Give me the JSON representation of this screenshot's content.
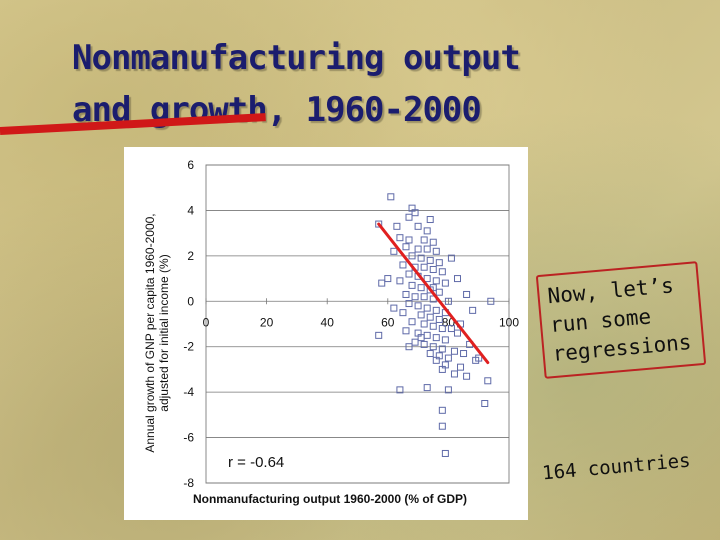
{
  "slide": {
    "title_line1": "Nonmanufacturing output",
    "title_line2": "and growth, 1960-2000",
    "callout_line1": "Now, let’s",
    "callout_line2": "run some",
    "callout_line3": "regressions",
    "note": "164 countries"
  },
  "colors": {
    "title": "#1b1d6e",
    "accent_red": "#d01818",
    "marker": "#5f6aa8",
    "fit_line": "#e02020"
  },
  "chart_data": {
    "type": "scatter",
    "title": "",
    "xlabel": "Nonmanufacturing output 1960-2000 (% of GDP)",
    "ylabel_line1": "Annual growth of GNP per capita 1960-2000,",
    "ylabel_line2": "adjusted for initial income (%)",
    "xlim": [
      0,
      100
    ],
    "ylim": [
      -8,
      6
    ],
    "x_ticks": [
      0,
      20,
      40,
      60,
      80,
      100
    ],
    "y_ticks": [
      -8,
      -6,
      -4,
      -2,
      0,
      2,
      4,
      6
    ],
    "x_tick_labels": [
      "0",
      "20",
      "40",
      "60",
      "80",
      "100"
    ],
    "y_tick_labels": [
      "-8",
      "-6",
      "-4",
      "-2",
      "0",
      "2",
      "4",
      "6"
    ],
    "grid": "horizontal",
    "annotation": "r = -0.64",
    "fit_line": {
      "x": [
        57,
        93
      ],
      "y": [
        3.4,
        -2.7
      ]
    },
    "points": [
      [
        61,
        4.6
      ],
      [
        68,
        4.1
      ],
      [
        69,
        3.9
      ],
      [
        67,
        3.7
      ],
      [
        57,
        3.4
      ],
      [
        63,
        3.3
      ],
      [
        70,
        3.3
      ],
      [
        73,
        3.1
      ],
      [
        64,
        2.8
      ],
      [
        67,
        2.7
      ],
      [
        72,
        2.7
      ],
      [
        75,
        2.6
      ],
      [
        66,
        2.4
      ],
      [
        70,
        2.3
      ],
      [
        73,
        2.3
      ],
      [
        76,
        2.2
      ],
      [
        62,
        2.2
      ],
      [
        68,
        2.0
      ],
      [
        71,
        1.9
      ],
      [
        74,
        1.8
      ],
      [
        77,
        1.7
      ],
      [
        65,
        1.6
      ],
      [
        69,
        1.5
      ],
      [
        72,
        1.5
      ],
      [
        75,
        1.4
      ],
      [
        78,
        1.3
      ],
      [
        67,
        1.2
      ],
      [
        70,
        1.1
      ],
      [
        73,
        1.0
      ],
      [
        76,
        0.9
      ],
      [
        79,
        0.8
      ],
      [
        58,
        0.8
      ],
      [
        64,
        0.9
      ],
      [
        68,
        0.7
      ],
      [
        71,
        0.6
      ],
      [
        74,
        0.5
      ],
      [
        77,
        0.4
      ],
      [
        66,
        0.3
      ],
      [
        69,
        0.2
      ],
      [
        72,
        0.2
      ],
      [
        75,
        0.1
      ],
      [
        80,
        0.0
      ],
      [
        94,
        0.0
      ],
      [
        67,
        -0.1
      ],
      [
        70,
        -0.2
      ],
      [
        73,
        -0.3
      ],
      [
        76,
        -0.4
      ],
      [
        79,
        -0.5
      ],
      [
        65,
        -0.5
      ],
      [
        71,
        -0.6
      ],
      [
        74,
        -0.7
      ],
      [
        77,
        -0.8
      ],
      [
        68,
        -0.9
      ],
      [
        72,
        -1.0
      ],
      [
        75,
        -1.1
      ],
      [
        78,
        -1.2
      ],
      [
        81,
        -1.2
      ],
      [
        57,
        -1.5
      ],
      [
        66,
        -1.3
      ],
      [
        70,
        -1.4
      ],
      [
        73,
        -1.5
      ],
      [
        76,
        -1.6
      ],
      [
        79,
        -1.7
      ],
      [
        83,
        -1.4
      ],
      [
        69,
        -1.8
      ],
      [
        72,
        -1.9
      ],
      [
        75,
        -2.0
      ],
      [
        78,
        -2.1
      ],
      [
        82,
        -2.2
      ],
      [
        67,
        -2.0
      ],
      [
        74,
        -2.3
      ],
      [
        77,
        -2.4
      ],
      [
        80,
        -2.5
      ],
      [
        85,
        -2.3
      ],
      [
        76,
        -2.6
      ],
      [
        79,
        -2.8
      ],
      [
        84,
        -2.9
      ],
      [
        89,
        -2.6
      ],
      [
        78,
        -3.0
      ],
      [
        82,
        -3.2
      ],
      [
        86,
        -3.3
      ],
      [
        93,
        -3.5
      ],
      [
        64,
        -3.9
      ],
      [
        73,
        -3.8
      ],
      [
        80,
        -3.9
      ],
      [
        92,
        -4.5
      ],
      [
        78,
        -4.8
      ],
      [
        78,
        -5.5
      ],
      [
        79,
        -6.7
      ],
      [
        90,
        -2.5
      ],
      [
        87,
        -1.9
      ],
      [
        84,
        -1.0
      ],
      [
        88,
        -0.4
      ],
      [
        86,
        0.3
      ],
      [
        83,
        1.0
      ],
      [
        81,
        1.9
      ],
      [
        74,
        3.6
      ],
      [
        62,
        -0.3
      ],
      [
        60,
        1.0
      ],
      [
        75,
        0.6
      ],
      [
        71,
        -1.6
      ]
    ]
  }
}
